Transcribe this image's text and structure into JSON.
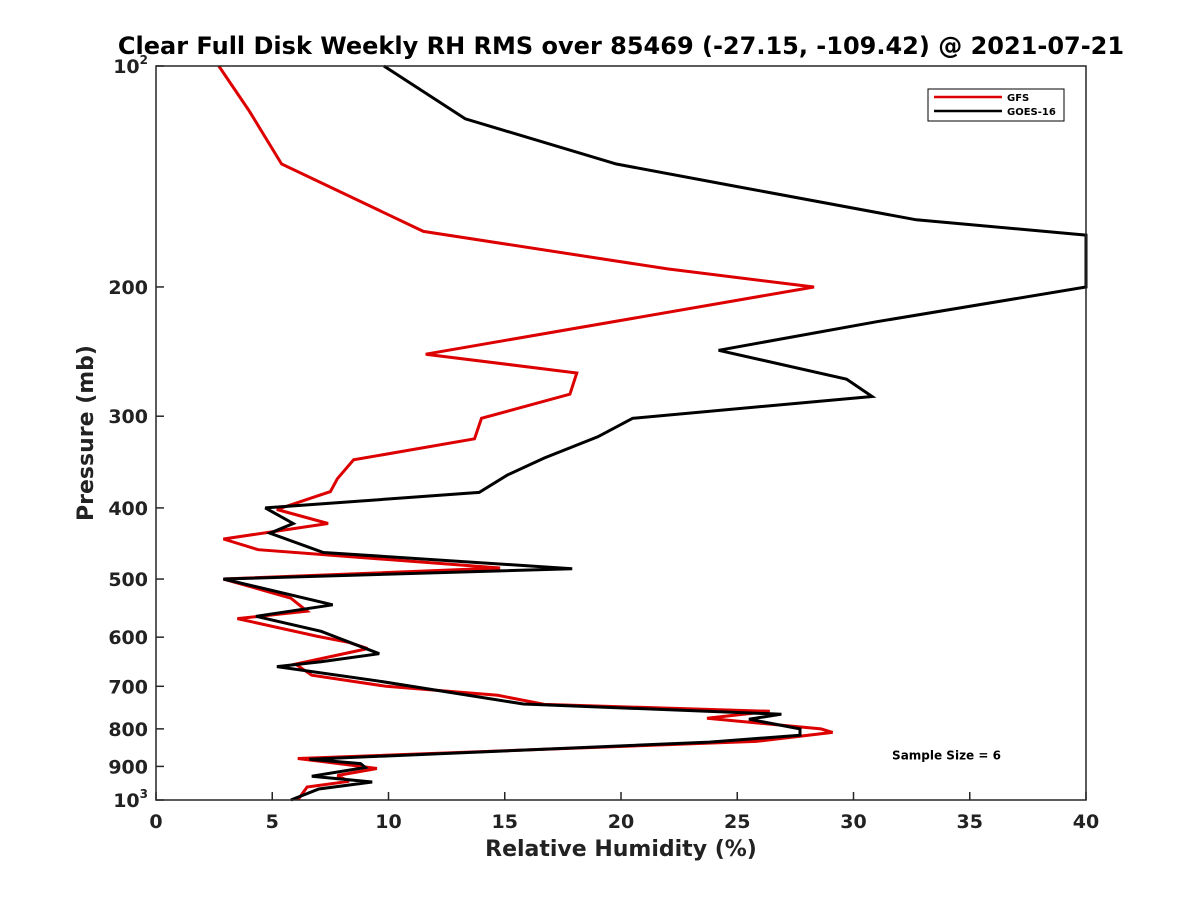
{
  "chart_data": {
    "type": "line",
    "orientation": "vertical-profile",
    "title": "Clear Full Disk Weekly RH RMS over 85469 (-27.15, -109.42) @ 2021-07-21",
    "xlabel": "Relative Humidity (%)",
    "ylabel": "Pressure (mb)",
    "xlim": [
      0,
      40
    ],
    "ylim": [
      100,
      1000
    ],
    "yscale": "log",
    "yreversed": true,
    "grid": false,
    "legend_position": "top-right",
    "xticks": [
      "0",
      "5",
      "10",
      "15",
      "20",
      "25",
      "30",
      "35",
      "40"
    ],
    "xtick_values": [
      0,
      5,
      10,
      15,
      20,
      25,
      30,
      35,
      40
    ],
    "ytick_values": [
      100,
      200,
      300,
      400,
      500,
      600,
      700,
      800,
      900,
      1000
    ],
    "yticks": [
      {
        "base": "10",
        "exp": "2"
      },
      {
        "base": "200",
        "exp": ""
      },
      {
        "base": "300",
        "exp": ""
      },
      {
        "base": "400",
        "exp": ""
      },
      {
        "base": "500",
        "exp": ""
      },
      {
        "base": "600",
        "exp": ""
      },
      {
        "base": "700",
        "exp": ""
      },
      {
        "base": "800",
        "exp": ""
      },
      {
        "base": "900",
        "exp": ""
      },
      {
        "base": "10",
        "exp": "3"
      }
    ],
    "series": [
      {
        "name": "GFS",
        "color": "#dd0000",
        "points": [
          [
            2.7,
            100
          ],
          [
            4.0,
            115
          ],
          [
            5.4,
            136
          ],
          [
            11.5,
            168
          ],
          [
            22.0,
            189
          ],
          [
            28.3,
            200
          ],
          [
            11.6,
            247
          ],
          [
            18.1,
            262
          ],
          [
            17.8,
            280
          ],
          [
            14.0,
            302
          ],
          [
            13.7,
            322
          ],
          [
            8.5,
            344
          ],
          [
            7.8,
            365
          ],
          [
            7.5,
            380
          ],
          [
            5.2,
            402
          ],
          [
            7.4,
            420
          ],
          [
            2.9,
            441
          ],
          [
            4.4,
            456
          ],
          [
            14.8,
            483
          ],
          [
            2.9,
            500
          ],
          [
            5.8,
            531
          ],
          [
            6.5,
            553
          ],
          [
            3.5,
            566
          ],
          [
            6.9,
            598
          ],
          [
            8.3,
            610
          ],
          [
            9.1,
            622
          ],
          [
            6.0,
            653
          ],
          [
            6.7,
            676
          ],
          [
            9.9,
            700
          ],
          [
            14.7,
            720
          ],
          [
            16.7,
            741
          ],
          [
            26.4,
            757
          ],
          [
            23.7,
            774
          ],
          [
            28.6,
            800
          ],
          [
            29.1,
            809
          ],
          [
            25.8,
            832
          ],
          [
            6.1,
            878
          ],
          [
            8.6,
            898
          ],
          [
            9.5,
            906
          ],
          [
            7.8,
            926
          ],
          [
            8.3,
            943
          ],
          [
            6.5,
            960
          ],
          [
            6.1,
            1000
          ]
        ]
      },
      {
        "name": "GOES-16",
        "color": "#000000",
        "points": [
          [
            9.8,
            100
          ],
          [
            13.3,
            118
          ],
          [
            19.8,
            136
          ],
          [
            25.0,
            146
          ],
          [
            32.7,
            162
          ],
          [
            40.0,
            170
          ],
          [
            40.0,
            200
          ],
          [
            31.0,
            223
          ],
          [
            24.2,
            244
          ],
          [
            29.7,
            267
          ],
          [
            30.8,
            282
          ],
          [
            20.5,
            302
          ],
          [
            19.0,
            320
          ],
          [
            16.7,
            342
          ],
          [
            15.1,
            361
          ],
          [
            13.9,
            381
          ],
          [
            4.7,
            400
          ],
          [
            5.9,
            420
          ],
          [
            4.9,
            433
          ],
          [
            7.2,
            460
          ],
          [
            17.9,
            484
          ],
          [
            2.9,
            500
          ],
          [
            7.6,
            542
          ],
          [
            4.3,
            562
          ],
          [
            7.1,
            589
          ],
          [
            9.6,
            632
          ],
          [
            7.1,
            648
          ],
          [
            5.2,
            658
          ],
          [
            9.5,
            688
          ],
          [
            15.8,
            740
          ],
          [
            26.9,
            764
          ],
          [
            25.5,
            776
          ],
          [
            27.7,
            800
          ],
          [
            27.7,
            816
          ],
          [
            23.8,
            834
          ],
          [
            6.6,
            880
          ],
          [
            8.8,
            892
          ],
          [
            9.0,
            903
          ],
          [
            6.7,
            928
          ],
          [
            9.3,
            945
          ],
          [
            7.0,
            966
          ],
          [
            5.8,
            1000
          ]
        ]
      }
    ],
    "annotations": [
      {
        "text": "Sample Size = 6",
        "x": 34.0,
        "y": 900
      }
    ]
  }
}
